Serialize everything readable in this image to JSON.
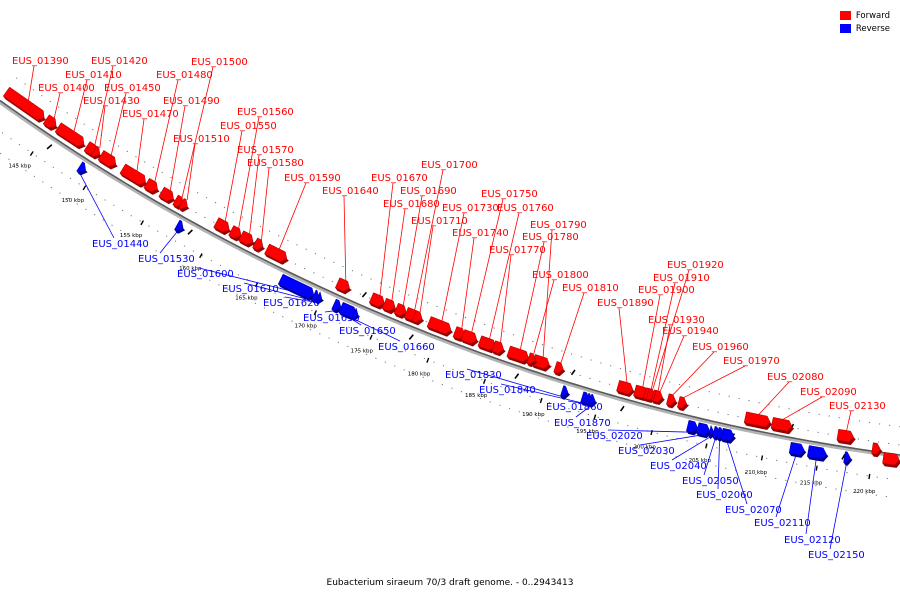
{
  "legend": {
    "forward_label": "Forward",
    "reverse_label": "Reverse",
    "forward_color": "#ff0000",
    "reverse_color": "#0000ff"
  },
  "caption": "Eubacterium siraeum 70/3 draft genome. - 0..2943413",
  "ticks": [
    "145 kbp",
    "150 kbp",
    "155 kbp",
    "160 kbp",
    "165 kbp",
    "170 kbp",
    "175 kbp",
    "180 kbp",
    "185 kbp",
    "190 kbp",
    "195 kbp",
    "200 kbp",
    "205 kbp",
    "210 kbp",
    "215 kbp",
    "220 kbp"
  ],
  "forward_genes": [
    "EUS_01390",
    "EUS_01400",
    "EUS_01410",
    "EUS_01420",
    "EUS_01430",
    "EUS_01450",
    "EUS_01470",
    "EUS_01480",
    "EUS_01490",
    "EUS_01500",
    "EUS_01510",
    "EUS_01550",
    "EUS_01560",
    "EUS_01570",
    "EUS_01580",
    "EUS_01590",
    "EUS_01640",
    "EUS_01670",
    "EUS_01680",
    "EUS_01690",
    "EUS_01700",
    "EUS_01710",
    "EUS_01730",
    "EUS_01740",
    "EUS_01750",
    "EUS_01760",
    "EUS_01770",
    "EUS_01780",
    "EUS_01790",
    "EUS_01800",
    "EUS_01810",
    "EUS_01890",
    "EUS_01900",
    "EUS_01910",
    "EUS_01920",
    "EUS_01930",
    "EUS_01940",
    "EUS_01960",
    "EUS_01970",
    "EUS_02080",
    "EUS_02090",
    "EUS_02130"
  ],
  "reverse_genes": [
    "EUS_01440",
    "EUS_01530",
    "EUS_01600",
    "EUS_01610",
    "EUS_01620",
    "EUS_01630",
    "EUS_01650",
    "EUS_01660",
    "EUS_01830",
    "EUS_01840",
    "EUS_01860",
    "EUS_01870",
    "EUS_02020",
    "EUS_02030",
    "EUS_02040",
    "EUS_02050",
    "EUS_02060",
    "EUS_02070",
    "EUS_02110",
    "EUS_02120",
    "EUS_02150"
  ]
}
